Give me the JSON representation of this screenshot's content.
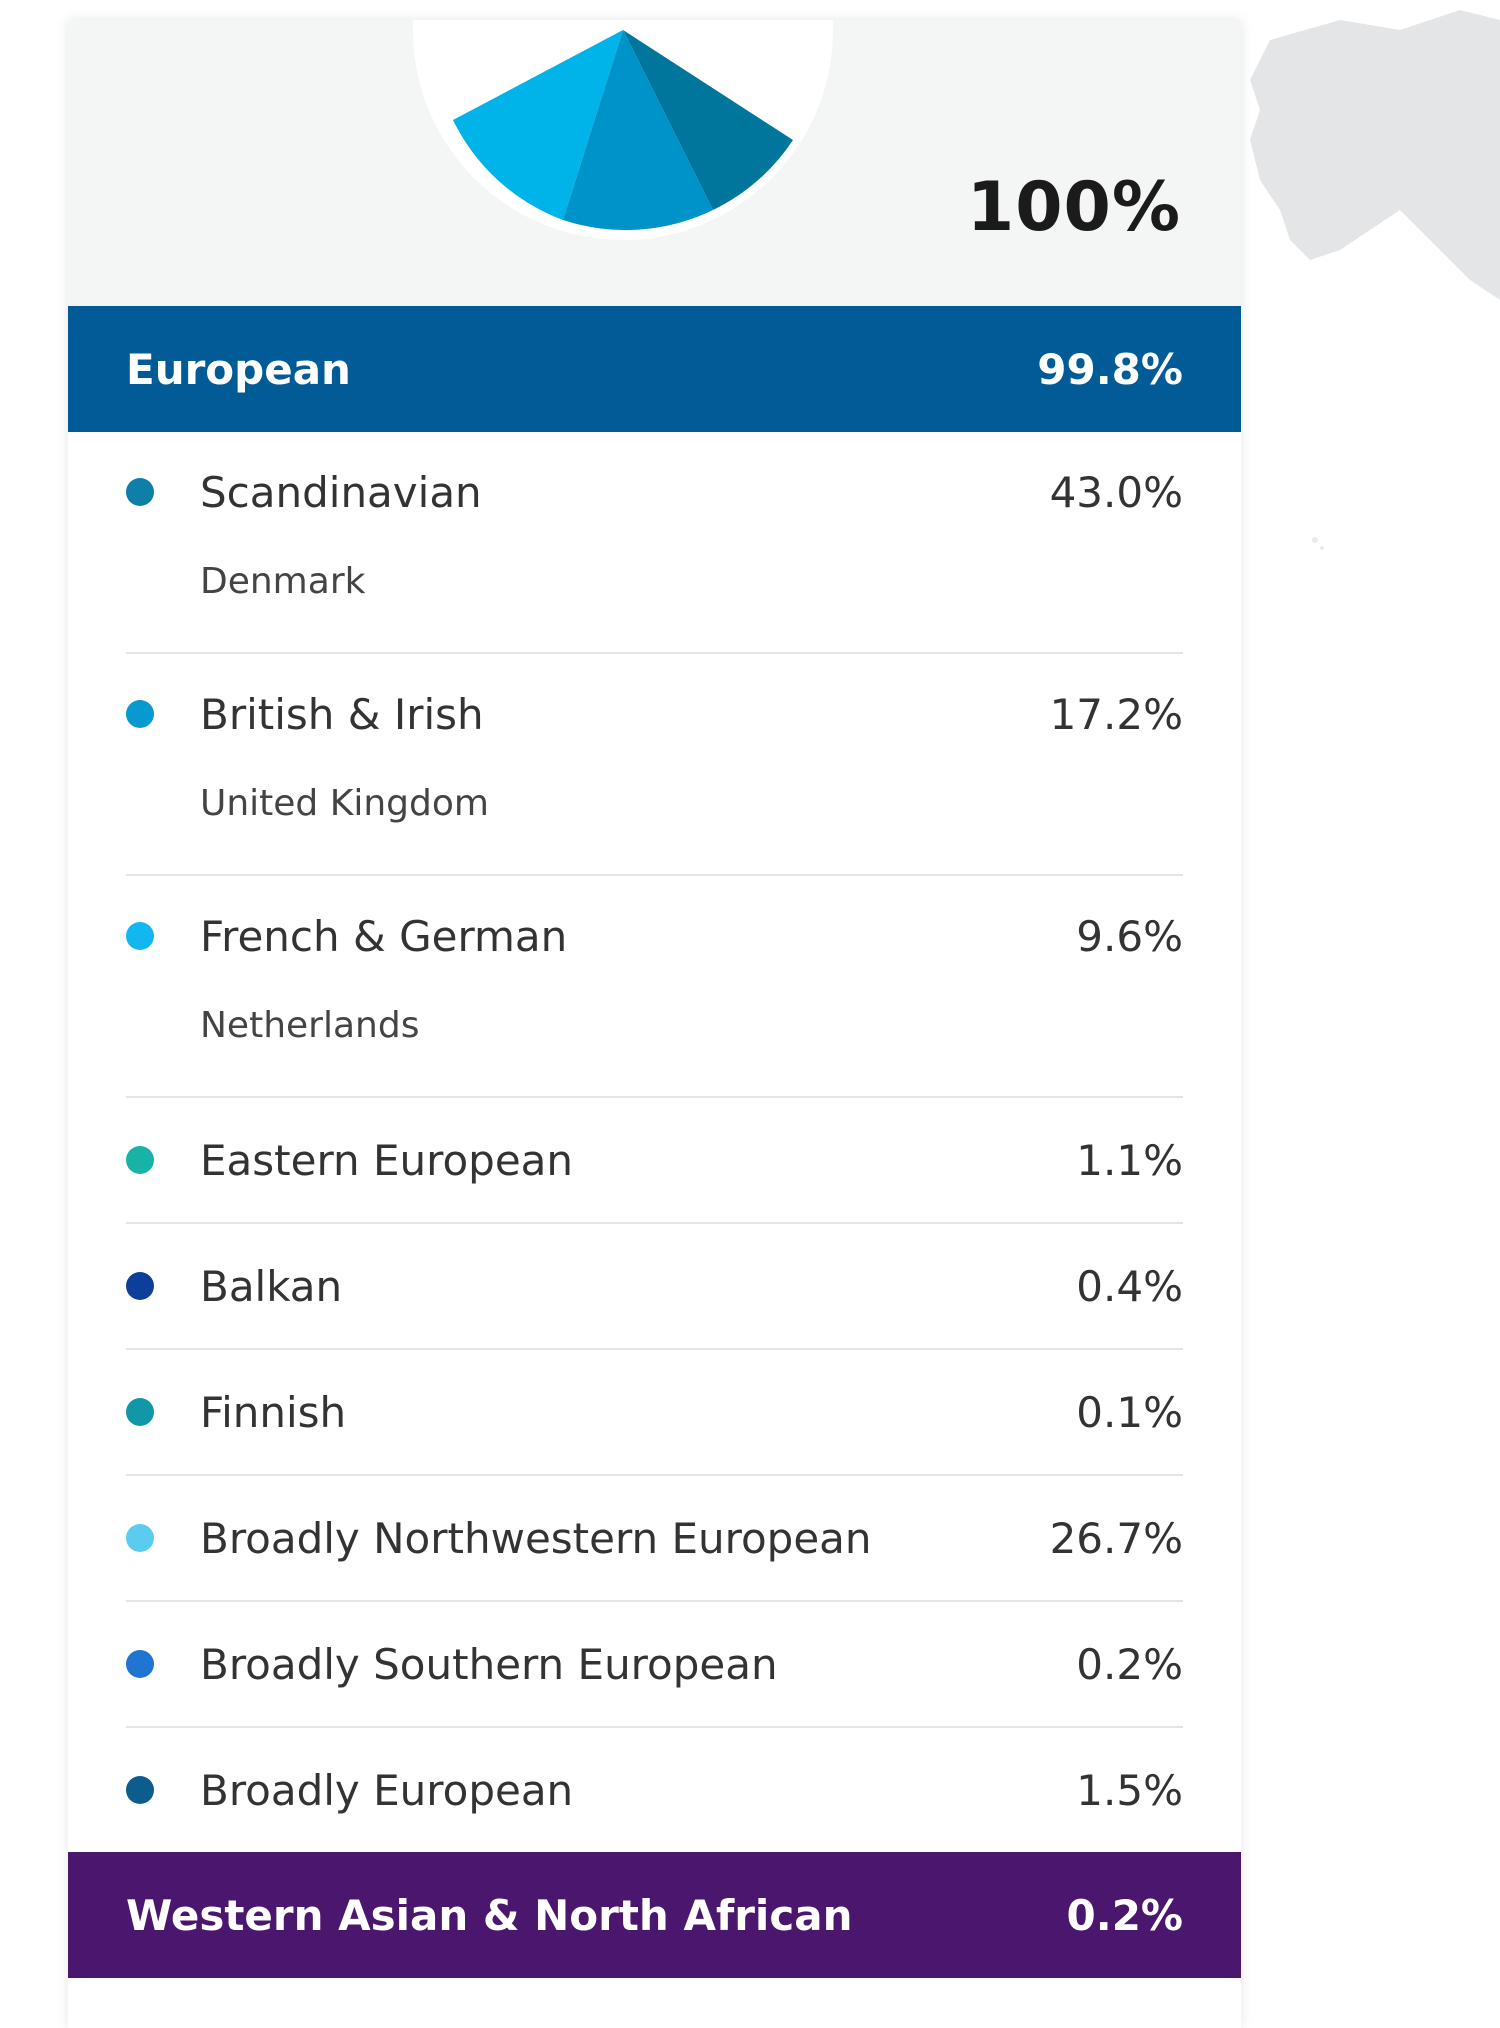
{
  "summary": {
    "total": "100%",
    "donut_colors": [
      "#00b3e8",
      "#0093c9",
      "#00769d"
    ]
  },
  "groups": [
    {
      "label": "European",
      "value": "99.8%",
      "color": "#005b96"
    },
    {
      "label": "Western Asian & North African",
      "value": "0.2%",
      "color": "#4b166d"
    }
  ],
  "european_items": [
    {
      "label": "Scandinavian",
      "value": "43.0%",
      "sub": "Denmark",
      "color": "#0e7fa6"
    },
    {
      "label": "British & Irish",
      "value": "17.2%",
      "sub": "United Kingdom",
      "color": "#0799cf"
    },
    {
      "label": "French & German",
      "value": "9.6%",
      "sub": "Netherlands",
      "color": "#13b7ef"
    },
    {
      "label": "Eastern European",
      "value": "1.1%",
      "sub": "",
      "color": "#16b3a6"
    },
    {
      "label": "Balkan",
      "value": "0.4%",
      "sub": "",
      "color": "#0d3e99"
    },
    {
      "label": "Finnish",
      "value": "0.1%",
      "sub": "",
      "color": "#1197a8"
    },
    {
      "label": "Broadly Northwestern European",
      "value": "26.7%",
      "sub": "",
      "color": "#5bcbf0"
    },
    {
      "label": "Broadly Southern European",
      "value": "0.2%",
      "sub": "",
      "color": "#1f75d1"
    },
    {
      "label": "Broadly European",
      "value": "1.5%",
      "sub": "",
      "color": "#0c5c8e"
    }
  ]
}
